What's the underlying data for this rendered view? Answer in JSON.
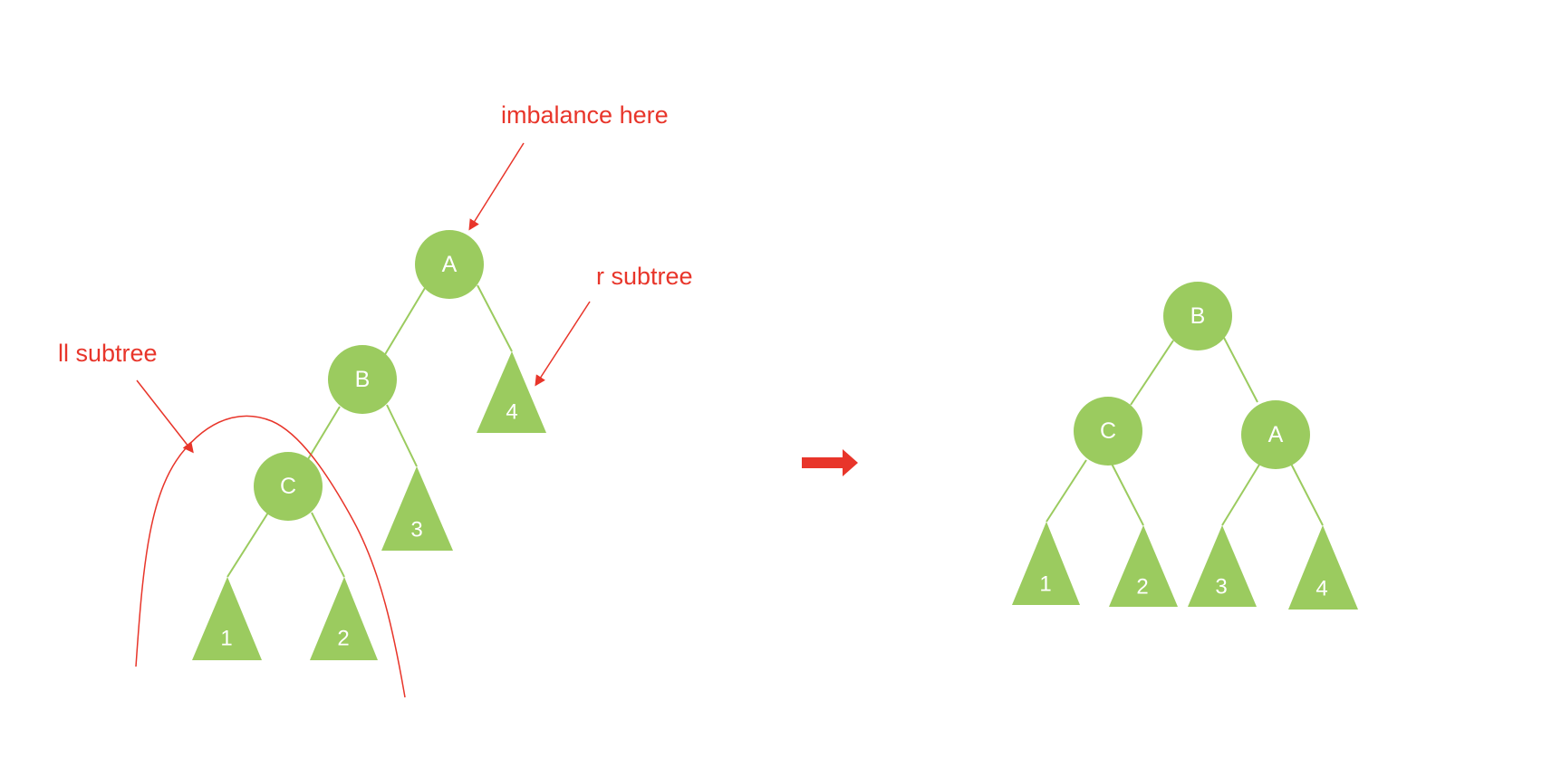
{
  "colors": {
    "node": "#9bcb5f",
    "edge": "#9bcb5f",
    "annotation": "#e8352a",
    "label": "#ffffff"
  },
  "annotations": {
    "imbalance": "imbalance here",
    "r_subtree": "r subtree",
    "ll_subtree": "ll subtree"
  },
  "before_tree": {
    "nodes": [
      {
        "id": "A",
        "label": "A"
      },
      {
        "id": "B",
        "label": "B"
      },
      {
        "id": "C",
        "label": "C"
      }
    ],
    "subtrees": [
      {
        "id": "T4",
        "label": "4"
      },
      {
        "id": "T3",
        "label": "3"
      },
      {
        "id": "T1",
        "label": "1"
      },
      {
        "id": "T2",
        "label": "2"
      }
    ]
  },
  "after_tree": {
    "nodes": [
      {
        "id": "B",
        "label": "B"
      },
      {
        "id": "C",
        "label": "C"
      },
      {
        "id": "A",
        "label": "A"
      }
    ],
    "subtrees": [
      {
        "id": "T1",
        "label": "1"
      },
      {
        "id": "T2",
        "label": "2"
      },
      {
        "id": "T3",
        "label": "3"
      },
      {
        "id": "T4",
        "label": "4"
      }
    ]
  },
  "transition_arrow": "right-arrow-icon"
}
